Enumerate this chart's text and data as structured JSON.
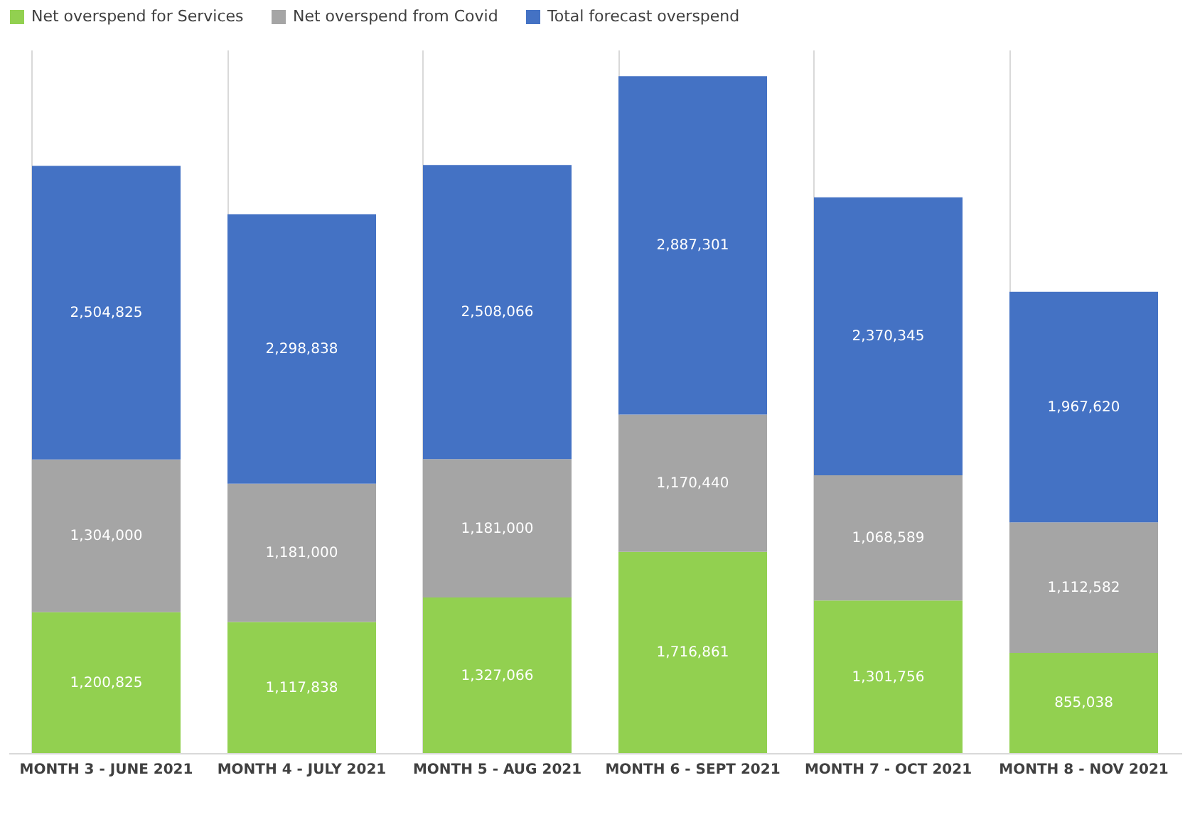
{
  "chart_data": {
    "type": "bar",
    "stacked": true,
    "legend": "top",
    "grid": "x",
    "tick_labels": "x",
    "categories": [
      "MONTH 3 - JUNE 2021",
      "MONTH 4 - JULY 2021",
      "MONTH 5 - AUG 2021",
      "MONTH 6 - SEPT 2021",
      "MONTH 7 - OCT 2021",
      "MONTH 8 - NOV 2021"
    ],
    "series": [
      {
        "name": "Net overspend for Services",
        "color": "#92d050",
        "values": [
          1200825,
          1117838,
          1327066,
          1716861,
          1301756,
          855038
        ],
        "value_labels": [
          "1,200,825",
          "1,117,838",
          "1,327,066",
          "1,716,861",
          "1,301,756",
          "855,038"
        ]
      },
      {
        "name": "Net overspend from Covid",
        "color": "#a5a5a5",
        "values": [
          1304000,
          1181000,
          1181000,
          1170440,
          1068589,
          1112582
        ],
        "value_labels": [
          "1,304,000",
          "1,181,000",
          "1,181,000",
          "1,170,440",
          "1,068,589",
          "1,112,582"
        ]
      },
      {
        "name": "Total forecast overspend",
        "color": "#4472c4",
        "values": [
          2504825,
          2298838,
          2508066,
          2887301,
          2370345,
          1967620
        ],
        "value_labels": [
          "2,504,825",
          "2,298,838",
          "2,508,066",
          "2,887,301",
          "2,370,345",
          "1,967,620"
        ]
      }
    ]
  }
}
